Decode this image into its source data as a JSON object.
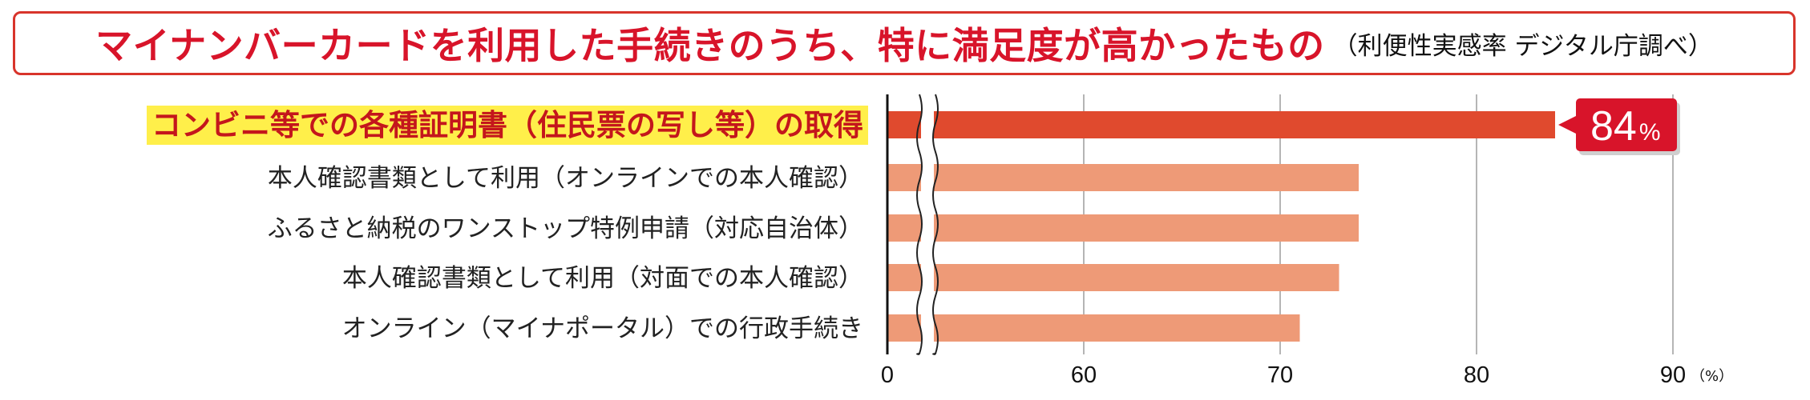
{
  "title": {
    "main": "マイナンバーカードを利用した手続きのうち、特に満足度が高かったもの",
    "note": "（利便性実感率 デジタル庁調べ）"
  },
  "colors": {
    "highlight_bar": "#e04a2e",
    "bar": "#ee9a77",
    "highlight_label_bg": "#ffef4a",
    "highlight_label_text": "#c4161c",
    "badge": "#d8142a"
  },
  "chart_data": {
    "type": "bar",
    "orientation": "horizontal",
    "categories": [
      "コンビニ等での各種証明書（住民票の写し等）の取得",
      "本人確認書類として利用（オンラインでの本人確認）",
      "ふるさと納税のワンストップ特例申請（対応自治体）",
      "本人確認書類として利用（対面での本人確認）",
      "オンライン（マイナポータル）での行政手続き"
    ],
    "values": [
      84,
      74,
      74,
      73,
      71
    ],
    "highlight_index": 0,
    "highlight_value_label": "84",
    "highlight_value_unit": "%",
    "x_ticks": [
      "0",
      "60",
      "70",
      "80",
      "90"
    ],
    "x_unit": "（%）",
    "axis_break": [
      0,
      60
    ],
    "xlim": [
      60,
      90
    ],
    "grid": true
  }
}
